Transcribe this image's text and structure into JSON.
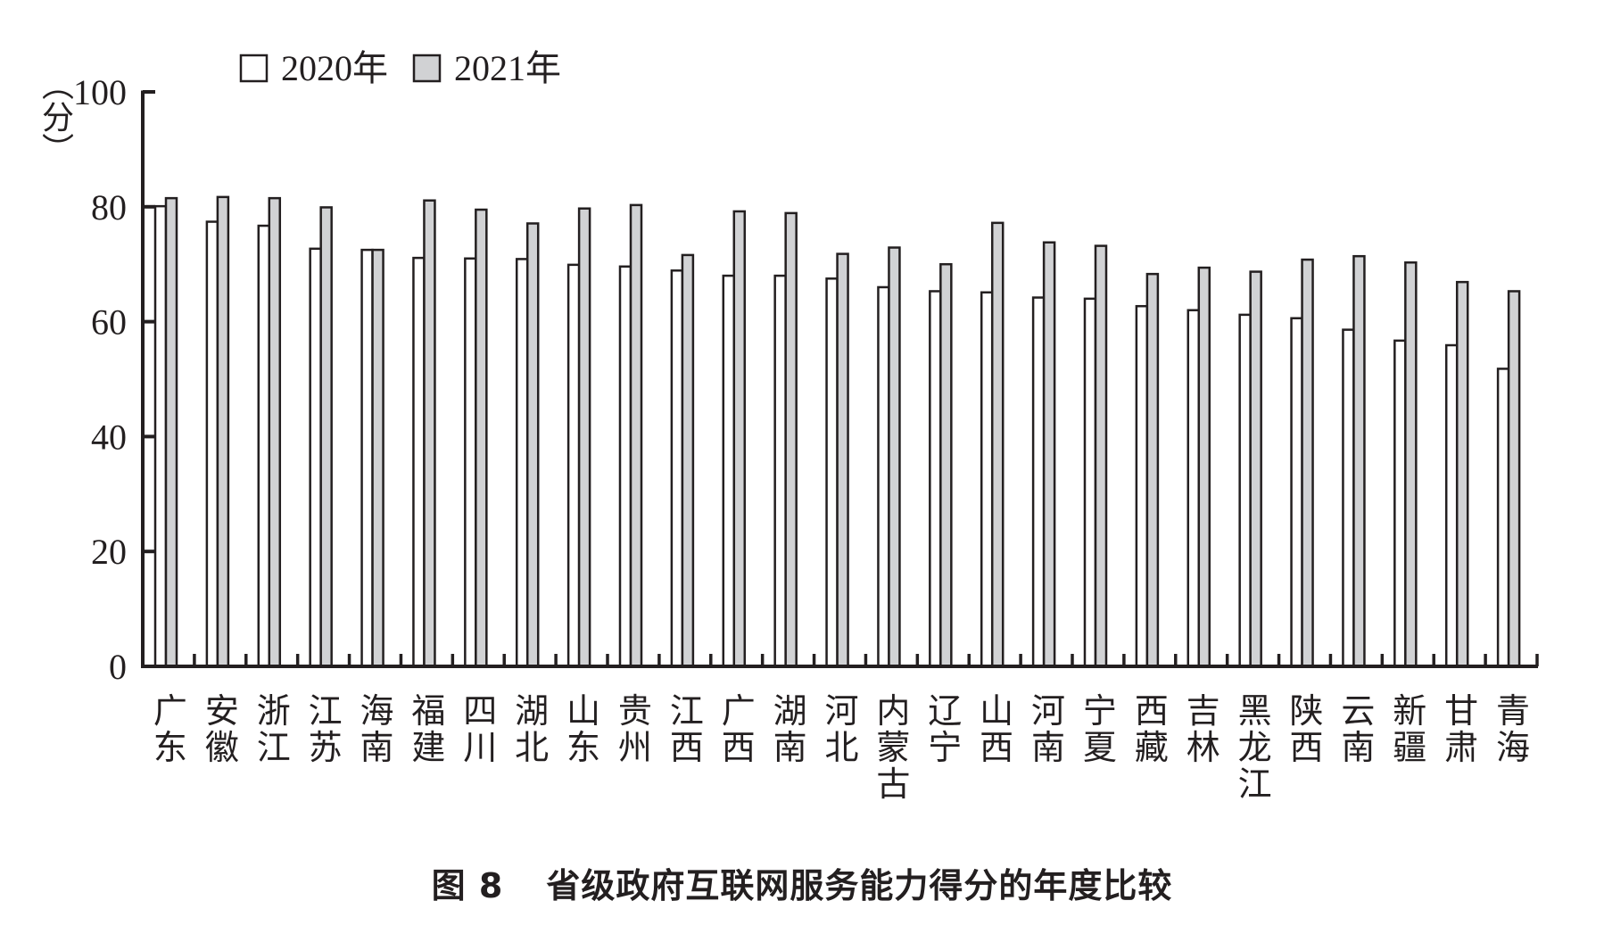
{
  "chart_data": {
    "type": "bar",
    "title": "图 8　省级政府互联网服务能力得分的年度比较",
    "caption_prefix": "图 8",
    "caption_text": "省级政府互联网服务能力得分的年度比较",
    "xlabel": "",
    "ylabel": "（分）",
    "ylabel_chars": [
      "︵",
      "分",
      "︶"
    ],
    "ylim": [
      0,
      100
    ],
    "yticks": [
      0,
      20,
      40,
      60,
      80,
      100
    ],
    "grid": false,
    "legend_position": "top-left",
    "categories": [
      "广东",
      "安徽",
      "浙江",
      "江苏",
      "海南",
      "福建",
      "四川",
      "湖北",
      "山东",
      "贵州",
      "江西",
      "广西",
      "湖南",
      "河北",
      "内蒙古",
      "辽宁",
      "山西",
      "河南",
      "宁夏",
      "西藏",
      "吉林",
      "黑龙江",
      "陕西",
      "云南",
      "新疆",
      "甘肃",
      "青海"
    ],
    "series": [
      {
        "name": "2020年",
        "color": "#ffffff",
        "edge": "#231f20",
        "values": [
          80.1,
          77.4,
          76.7,
          72.7,
          72.5,
          71.1,
          71.0,
          70.9,
          69.9,
          69.6,
          68.9,
          68.0,
          68.0,
          67.5,
          66.0,
          65.3,
          65.1,
          64.2,
          64.0,
          62.7,
          62.0,
          61.2,
          60.6,
          58.6,
          56.7,
          55.9,
          51.8
        ]
      },
      {
        "name": "2021年",
        "color": "#d1d2d4",
        "edge": "#231f20",
        "values": [
          81.5,
          81.7,
          81.5,
          79.9,
          72.5,
          81.1,
          79.5,
          77.1,
          79.7,
          80.3,
          71.6,
          79.2,
          78.9,
          71.8,
          72.9,
          70.0,
          77.2,
          73.8,
          73.2,
          68.3,
          69.4,
          68.7,
          70.8,
          71.4,
          70.3,
          66.9,
          65.3
        ]
      }
    ]
  }
}
